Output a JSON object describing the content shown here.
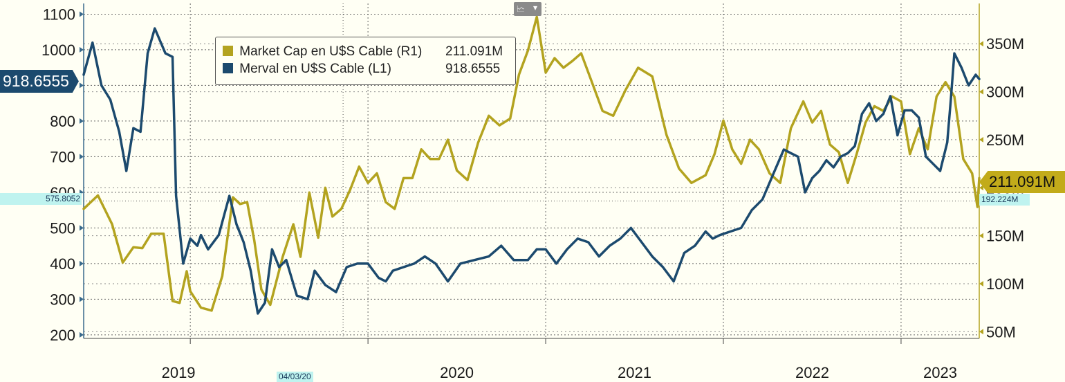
{
  "chart_data": {
    "type": "line",
    "title": "",
    "xlabel": "",
    "ylabel": "",
    "x_ticks": [
      "2019",
      "2020",
      "2021",
      "2022",
      "2023"
    ],
    "x_range": [
      2018.5,
      2023.54
    ],
    "y_left": {
      "ticks": [
        200,
        300,
        400,
        500,
        600,
        700,
        800,
        900,
        1000,
        1100
      ],
      "range": [
        190,
        1130
      ]
    },
    "y_right": {
      "ticks": [
        "50M",
        "100M",
        "150M",
        "200M",
        "250M",
        "300M",
        "350M"
      ],
      "tick_values": [
        50,
        100,
        150,
        200,
        250,
        300,
        350
      ],
      "range": [
        43,
        392
      ]
    },
    "grid": true,
    "legend_position": "top-left",
    "series": [
      {
        "name": "Market Cap en U$S Cable (R1)",
        "axis": "right",
        "color": "#b3a31f",
        "legend_value": "211.091M",
        "x": [
          2018.5,
          2018.58,
          2018.66,
          2018.72,
          2018.78,
          2018.83,
          2018.88,
          2018.95,
          2019.0,
          2019.04,
          2019.08,
          2019.1,
          2019.16,
          2019.22,
          2019.28,
          2019.34,
          2019.38,
          2019.42,
          2019.46,
          2019.5,
          2019.55,
          2019.62,
          2019.68,
          2019.72,
          2019.77,
          2019.82,
          2019.86,
          2019.9,
          2019.95,
          2020.0,
          2020.05,
          2020.1,
          2020.15,
          2020.2,
          2020.25,
          2020.3,
          2020.35,
          2020.4,
          2020.45,
          2020.5,
          2020.55,
          2020.6,
          2020.66,
          2020.72,
          2020.78,
          2020.84,
          2020.9,
          2020.95,
          2021.0,
          2021.05,
          2021.1,
          2021.15,
          2021.2,
          2021.25,
          2021.3,
          2021.36,
          2021.42,
          2021.48,
          2021.55,
          2021.62,
          2021.7,
          2021.78,
          2021.85,
          2021.92,
          2022.0,
          2022.05,
          2022.1,
          2022.15,
          2022.2,
          2022.25,
          2022.3,
          2022.36,
          2022.42,
          2022.48,
          2022.55,
          2022.6,
          2022.65,
          2022.7,
          2022.75,
          2022.8,
          2022.85,
          2022.9,
          2022.95,
          2023.0,
          2023.05,
          2023.1,
          2023.15,
          2023.2,
          2023.25,
          2023.3,
          2023.35,
          2023.4,
          2023.45,
          2023.5,
          2023.53,
          2023.54
        ],
        "y": [
          178,
          192,
          162,
          122,
          138,
          137,
          152,
          152,
          82,
          80,
          113,
          92,
          75,
          72,
          108,
          190,
          183,
          185,
          145,
          94,
          78,
          128,
          162,
          128,
          195,
          148,
          200,
          170,
          178,
          198,
          222,
          205,
          215,
          185,
          178,
          210,
          210,
          240,
          230,
          230,
          250,
          218,
          208,
          247,
          275,
          265,
          272,
          318,
          343,
          378,
          320,
          335,
          325,
          332,
          340,
          310,
          280,
          275,
          302,
          325,
          316,
          255,
          220,
          205,
          213,
          235,
          270,
          240,
          225,
          250,
          240,
          215,
          205,
          262,
          290,
          268,
          280,
          245,
          237,
          205,
          235,
          268,
          285,
          280,
          295,
          290,
          235,
          262,
          240,
          295,
          310,
          295,
          230,
          215,
          180,
          210
        ]
      },
      {
        "name": "Merval en U$S Cable (L1)",
        "axis": "left",
        "color": "#1c4a6e",
        "legend_value": "918.6555",
        "x": [
          2018.5,
          2018.55,
          2018.6,
          2018.65,
          2018.7,
          2018.74,
          2018.78,
          2018.82,
          2018.86,
          2018.9,
          2018.96,
          2019.0,
          2019.02,
          2019.06,
          2019.1,
          2019.14,
          2019.16,
          2019.2,
          2019.26,
          2019.32,
          2019.36,
          2019.4,
          2019.44,
          2019.48,
          2019.52,
          2019.56,
          2019.6,
          2019.64,
          2019.7,
          2019.76,
          2019.8,
          2019.86,
          2019.92,
          2019.98,
          2020.04,
          2020.1,
          2020.16,
          2020.2,
          2020.24,
          2020.3,
          2020.36,
          2020.42,
          2020.48,
          2020.55,
          2020.62,
          2020.7,
          2020.78,
          2020.85,
          2020.92,
          2021.0,
          2021.05,
          2021.1,
          2021.16,
          2021.22,
          2021.28,
          2021.34,
          2021.4,
          2021.46,
          2021.52,
          2021.58,
          2021.64,
          2021.7,
          2021.76,
          2021.82,
          2021.88,
          2021.94,
          2022.0,
          2022.04,
          2022.08,
          2022.14,
          2022.2,
          2022.26,
          2022.32,
          2022.38,
          2022.44,
          2022.48,
          2022.52,
          2022.56,
          2022.6,
          2022.64,
          2022.68,
          2022.72,
          2022.76,
          2022.8,
          2022.84,
          2022.88,
          2022.92,
          2022.96,
          2023.0,
          2023.04,
          2023.08,
          2023.12,
          2023.16,
          2023.2,
          2023.24,
          2023.28,
          2023.32,
          2023.36,
          2023.38,
          2023.4,
          2023.44,
          2023.48,
          2023.52,
          2023.54
        ],
        "y": [
          930,
          1020,
          900,
          860,
          770,
          660,
          780,
          770,
          990,
          1060,
          990,
          980,
          590,
          400,
          470,
          450,
          480,
          440,
          480,
          590,
          510,
          460,
          380,
          260,
          290,
          440,
          390,
          410,
          310,
          300,
          380,
          340,
          320,
          390,
          400,
          400,
          360,
          350,
          380,
          390,
          400,
          420,
          400,
          350,
          400,
          410,
          420,
          450,
          410,
          410,
          440,
          440,
          400,
          440,
          470,
          460,
          420,
          450,
          470,
          500,
          460,
          420,
          390,
          350,
          430,
          450,
          490,
          470,
          480,
          490,
          500,
          550,
          580,
          650,
          720,
          710,
          700,
          600,
          640,
          660,
          690,
          670,
          700,
          710,
          730,
          820,
          850,
          800,
          820,
          870,
          760,
          830,
          830,
          810,
          700,
          680,
          660,
          740,
          860,
          990,
          950,
          900,
          930,
          918
        ]
      }
    ],
    "annotations": [
      {
        "label": "918.6555",
        "axis": "left",
        "value": 918.6555
      },
      {
        "label": "575.8052",
        "axis": "left",
        "value": 575.8052
      },
      {
        "label": "211.091M",
        "axis": "right",
        "value": 211.091
      },
      {
        "label": "192.224M",
        "axis": "right",
        "value": 192.224
      },
      {
        "label": "04/03/20",
        "axis": "x",
        "value": 2020.1
      }
    ]
  }
}
